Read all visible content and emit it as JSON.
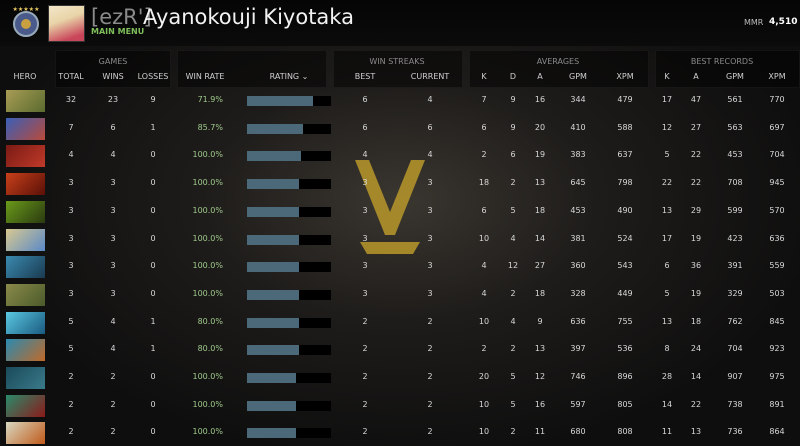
{
  "header": {
    "clan_tag": "[ezR']",
    "player_name": "Ayanokouji Kiyotaka",
    "subtitle": "MAIN MENU",
    "mmr_label": "MMR",
    "mmr_value": "4,510"
  },
  "groups": [
    {
      "label": "GAMES",
      "cx": 113
    },
    {
      "label": "WIN STREAKS",
      "cx": 397
    },
    {
      "label": "AVERAGES",
      "cx": 558
    },
    {
      "label": "BEST RECORDS",
      "cx": 722
    }
  ],
  "columns": [
    "HERO",
    "TOTAL",
    "WINS",
    "LOSSES",
    "WIN RATE",
    "RATING ⌄",
    "BEST",
    "CURRENT",
    "K",
    "D",
    "A",
    "GPM",
    "XPM",
    "K",
    "A",
    "GPM",
    "XPM"
  ],
  "rows": [
    {
      "hero_colors": [
        "#a89c55",
        "#5a6b2e"
      ],
      "total": 32,
      "wins": 23,
      "losses": 9,
      "win_rate": "71.9%",
      "rating": 0.79,
      "best": 6,
      "current": 4,
      "avg": [
        7,
        9,
        16,
        344,
        479
      ],
      "rec": [
        17,
        47,
        561,
        770
      ]
    },
    {
      "hero_colors": [
        "#3a5fb8",
        "#b84a3a"
      ],
      "total": 7,
      "wins": 6,
      "losses": 1,
      "win_rate": "85.7%",
      "rating": 0.67,
      "best": 6,
      "current": 6,
      "avg": [
        6,
        9,
        20,
        410,
        588
      ],
      "rec": [
        12,
        27,
        563,
        697
      ]
    },
    {
      "hero_colors": [
        "#7a1a14",
        "#c03a2a"
      ],
      "total": 4,
      "wins": 4,
      "losses": 0,
      "win_rate": "100.0%",
      "rating": 0.64,
      "best": 4,
      "current": 4,
      "avg": [
        2,
        6,
        19,
        383,
        637
      ],
      "rec": [
        5,
        22,
        453,
        704
      ]
    },
    {
      "hero_colors": [
        "#c8401a",
        "#5a1008"
      ],
      "total": 3,
      "wins": 3,
      "losses": 0,
      "win_rate": "100.0%",
      "rating": 0.62,
      "best": 3,
      "current": 3,
      "avg": [
        18,
        2,
        13,
        645,
        798
      ],
      "rec": [
        22,
        22,
        708,
        945
      ]
    },
    {
      "hero_colors": [
        "#6a9a1a",
        "#2a3a10"
      ],
      "total": 3,
      "wins": 3,
      "losses": 0,
      "win_rate": "100.0%",
      "rating": 0.62,
      "best": 3,
      "current": 3,
      "avg": [
        6,
        5,
        18,
        453,
        490
      ],
      "rec": [
        13,
        29,
        599,
        570
      ]
    },
    {
      "hero_colors": [
        "#d8c890",
        "#5a8ac8"
      ],
      "total": 3,
      "wins": 3,
      "losses": 0,
      "win_rate": "100.0%",
      "rating": 0.62,
      "best": 3,
      "current": 3,
      "avg": [
        10,
        4,
        14,
        381,
        524
      ],
      "rec": [
        17,
        19,
        423,
        636
      ]
    },
    {
      "hero_colors": [
        "#3a8ab0",
        "#1a3a50"
      ],
      "total": 3,
      "wins": 3,
      "losses": 0,
      "win_rate": "100.0%",
      "rating": 0.62,
      "best": 3,
      "current": 3,
      "avg": [
        4,
        12,
        27,
        360,
        543
      ],
      "rec": [
        6,
        36,
        391,
        559
      ]
    },
    {
      "hero_colors": [
        "#8a8a4a",
        "#4a5a2a"
      ],
      "total": 3,
      "wins": 3,
      "losses": 0,
      "win_rate": "100.0%",
      "rating": 0.62,
      "best": 3,
      "current": 3,
      "avg": [
        4,
        2,
        18,
        328,
        449
      ],
      "rec": [
        5,
        19,
        329,
        503
      ]
    },
    {
      "hero_colors": [
        "#5ac8e0",
        "#1a5a80"
      ],
      "total": 5,
      "wins": 4,
      "losses": 1,
      "win_rate": "80.0%",
      "rating": 0.62,
      "best": 2,
      "current": 2,
      "avg": [
        10,
        4,
        9,
        636,
        755
      ],
      "rec": [
        13,
        18,
        762,
        845
      ]
    },
    {
      "hero_colors": [
        "#2a8ab0",
        "#c06a2a"
      ],
      "total": 5,
      "wins": 4,
      "losses": 1,
      "win_rate": "80.0%",
      "rating": 0.62,
      "best": 2,
      "current": 2,
      "avg": [
        2,
        2,
        13,
        397,
        536
      ],
      "rec": [
        8,
        24,
        704,
        923
      ]
    },
    {
      "hero_colors": [
        "#1a4a5a",
        "#3a7a8a"
      ],
      "total": 2,
      "wins": 2,
      "losses": 0,
      "win_rate": "100.0%",
      "rating": 0.58,
      "best": 2,
      "current": 2,
      "avg": [
        20,
        5,
        12,
        746,
        896
      ],
      "rec": [
        28,
        14,
        907,
        975
      ]
    },
    {
      "hero_colors": [
        "#2a8a6a",
        "#8a1a1a"
      ],
      "total": 2,
      "wins": 2,
      "losses": 0,
      "win_rate": "100.0%",
      "rating": 0.58,
      "best": 2,
      "current": 2,
      "avg": [
        10,
        5,
        16,
        597,
        805
      ],
      "rec": [
        14,
        22,
        738,
        891
      ]
    },
    {
      "hero_colors": [
        "#d8d8c0",
        "#c05a1a"
      ],
      "total": 2,
      "wins": 2,
      "losses": 0,
      "win_rate": "100.0%",
      "rating": 0.58,
      "best": 2,
      "current": 2,
      "avg": [
        10,
        2,
        11,
        680,
        808
      ],
      "rec": [
        11,
        13,
        736,
        864
      ]
    }
  ],
  "colors": {
    "accent_green": "#7fbf5a",
    "win_rate": "#9fc98c",
    "rating_bar": "#4b6978",
    "logo_gold": "#b8982a"
  }
}
